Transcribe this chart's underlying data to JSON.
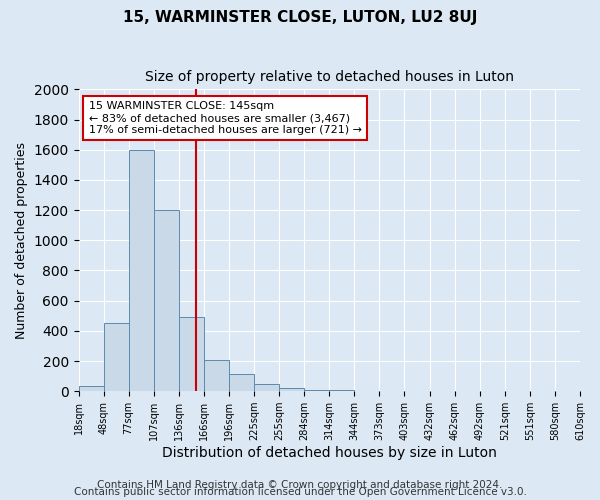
{
  "title": "15, WARMINSTER CLOSE, LUTON, LU2 8UJ",
  "subtitle": "Size of property relative to detached houses in Luton",
  "xlabel": "Distribution of detached houses by size in Luton",
  "ylabel": "Number of detached properties",
  "bin_labels": [
    "18sqm",
    "48sqm",
    "77sqm",
    "107sqm",
    "136sqm",
    "166sqm",
    "196sqm",
    "225sqm",
    "255sqm",
    "284sqm",
    "314sqm",
    "344sqm",
    "373sqm",
    "403sqm",
    "432sqm",
    "462sqm",
    "492sqm",
    "521sqm",
    "551sqm",
    "580sqm",
    "610sqm"
  ],
  "bar_values": [
    35,
    450,
    1600,
    1200,
    490,
    210,
    115,
    45,
    20,
    10,
    8,
    0,
    0,
    0,
    0,
    0,
    0,
    0,
    0,
    0
  ],
  "bar_color": "#c9d9e8",
  "bar_edge_color": "#5a8ab0",
  "vline_x": 4.67,
  "vline_color": "#cc0000",
  "annotation_text": "15 WARMINSTER CLOSE: 145sqm\n← 83% of detached houses are smaller (3,467)\n17% of semi-detached houses are larger (721) →",
  "annotation_box_color": "#ffffff",
  "annotation_box_edge": "#cc0000",
  "ylim": [
    0,
    2000
  ],
  "yticks": [
    0,
    200,
    400,
    600,
    800,
    1000,
    1200,
    1400,
    1600,
    1800,
    2000
  ],
  "footer1": "Contains HM Land Registry data © Crown copyright and database right 2024.",
  "footer2": "Contains public sector information licensed under the Open Government Licence v3.0.",
  "background_color": "#dce9f5",
  "plot_bg_color": "#dce9f5",
  "title_fontsize": 11,
  "subtitle_fontsize": 10,
  "xlabel_fontsize": 10,
  "ylabel_fontsize": 9,
  "footer_fontsize": 7.5
}
